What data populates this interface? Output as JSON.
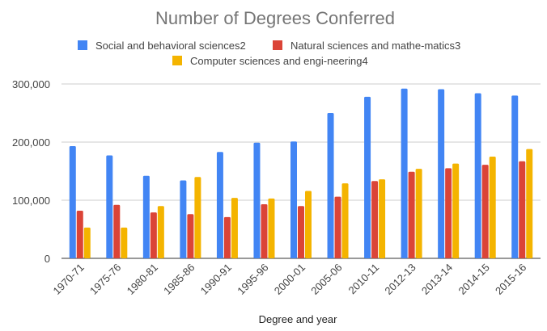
{
  "chart_data": {
    "type": "bar",
    "title": "Number of Degrees Conferred",
    "xlabel": "Degree and year",
    "ylabel": "",
    "ylim": [
      0,
      300000
    ],
    "yticks": [
      0,
      100000,
      200000,
      300000
    ],
    "ytick_labels": [
      "0",
      "100,000",
      "200,000",
      "300,000"
    ],
    "grid": true,
    "legend_position": "top",
    "categories": [
      "1970-71",
      "1975-76",
      "1980-81",
      "1985-86",
      "1990-91",
      "1995-96",
      "2000-01",
      "2005-06",
      "2010-11",
      "2012-13",
      "2013-14",
      "2014-15",
      "2015-16"
    ],
    "series": [
      {
        "name": "Social and behavioral sciences2",
        "color": "#4285f4",
        "values": [
          193000,
          177000,
          142000,
          134000,
          183000,
          199000,
          201000,
          250000,
          278000,
          292000,
          291000,
          284000,
          280000
        ]
      },
      {
        "name": "Natural sciences and mathe-matics3",
        "color": "#db4437",
        "values": [
          82000,
          92000,
          79000,
          76000,
          71000,
          93000,
          90000,
          106000,
          133000,
          149000,
          155000,
          161000,
          167000
        ]
      },
      {
        "name": "Computer sciences and engi-neering4",
        "color": "#f4b400",
        "values": [
          53000,
          53000,
          90000,
          140000,
          104000,
          103000,
          116000,
          129000,
          136000,
          154000,
          163000,
          175000,
          188000
        ]
      }
    ]
  }
}
